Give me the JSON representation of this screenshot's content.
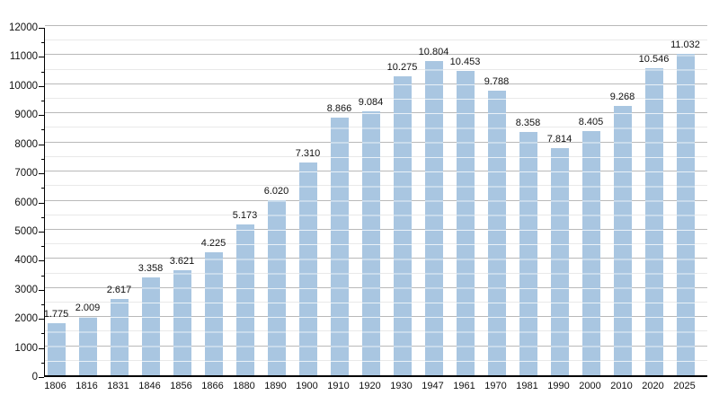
{
  "chart_data": {
    "type": "bar",
    "categories": [
      "1806",
      "1816",
      "1831",
      "1846",
      "1856",
      "1866",
      "1880",
      "1890",
      "1900",
      "1910",
      "1920",
      "1930",
      "1947",
      "1961",
      "1970",
      "1981",
      "1990",
      "2000",
      "2010",
      "2020",
      "2025"
    ],
    "values": [
      1775,
      2009,
      2617,
      3358,
      3621,
      4225,
      5173,
      6020,
      7310,
      8866,
      9084,
      10275,
      10804,
      10453,
      9788,
      8358,
      7814,
      8405,
      9268,
      10546,
      11032
    ],
    "value_labels": [
      "1.775",
      "2.009",
      "2.617",
      "3.358",
      "3.621",
      "4.225",
      "5.173",
      "6.020",
      "7.310",
      "8.866",
      "9.084",
      "10.275",
      "10.804",
      "10.453",
      "9.788",
      "8.358",
      "7.814",
      "8.405",
      "9.268",
      "10.546",
      "11.032"
    ],
    "ylim": [
      0,
      12000
    ],
    "y_ticks": [
      0,
      1000,
      2000,
      3000,
      4000,
      5000,
      6000,
      7000,
      8000,
      9000,
      10000,
      11000,
      12000
    ],
    "y_minor_step": 500,
    "grid": true,
    "legend": "none",
    "colors": {
      "bar_fill": "#a9c6e1",
      "bar_stripe": "rgba(255,255,255,0.75)",
      "major_grid": "#b9b9b9",
      "minor_grid": "#e9e9e9",
      "axis": "#000000",
      "text": "#111111",
      "background": "#ffffff"
    }
  }
}
